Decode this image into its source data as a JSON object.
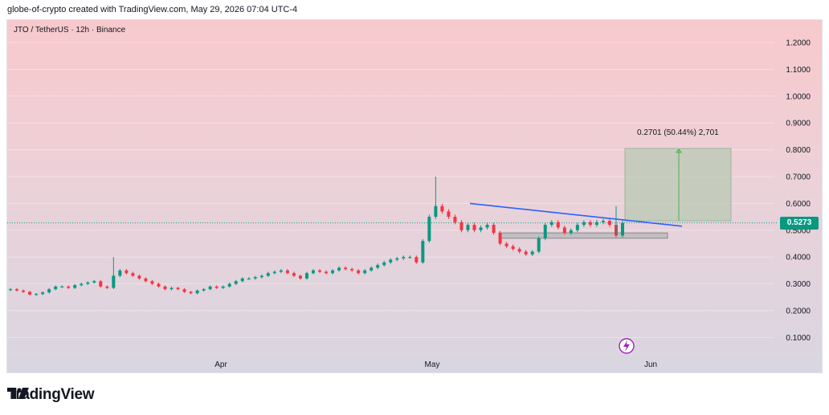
{
  "header": {
    "caption": "globe-of-crypto created with TradingView.com, May 29, 2026 07:04 UTC-4"
  },
  "symbol_line": "JTO / TetherUS · 12h · Binance",
  "last_price_label": "0.5273",
  "projection_label": "0.2701 (50.44%) 2,701",
  "brand": "TradingView",
  "colors": {
    "up": "#089981",
    "down": "#f23645",
    "trendline": "#2962ff",
    "target_box": "#b8c9b4"
  },
  "chart_data": {
    "type": "candlestick",
    "title": "JTO / TetherUS · 12h · Binance",
    "ylim": [
      0.05,
      1.25
    ],
    "y_ticks": [
      "1.2000",
      "1.1000",
      "1.0000",
      "0.9000",
      "0.8000",
      "0.7000",
      "0.6000",
      "0.5000",
      "0.4000",
      "0.3000",
      "0.2000",
      "0.1000"
    ],
    "x_ticks": [
      "Apr",
      "May",
      "Jun"
    ],
    "last_price": 0.5273,
    "resistance_box": [
      0.47,
      0.49
    ],
    "trendline": {
      "start": 0.6,
      "end": 0.515
    },
    "projection": {
      "from": 0.535,
      "to": 0.805,
      "delta": "0.2701",
      "pct": "50.44%",
      "ticks": "2,701"
    },
    "series": [
      {
        "values": [
          0.28,
          0.275,
          0.27,
          0.26,
          0.262,
          0.268,
          0.28,
          0.29,
          0.29,
          0.285,
          0.295,
          0.3,
          0.305,
          0.31,
          0.29,
          0.285,
          0.33,
          0.35,
          0.34,
          0.33,
          0.32,
          0.31,
          0.3,
          0.29,
          0.28,
          0.285,
          0.28,
          0.27,
          0.265,
          0.275,
          0.28,
          0.29,
          0.285,
          0.29,
          0.3,
          0.31,
          0.32,
          0.32,
          0.325,
          0.33,
          0.34,
          0.345,
          0.35,
          0.34,
          0.33,
          0.32,
          0.34,
          0.35,
          0.345,
          0.34,
          0.35,
          0.36,
          0.355,
          0.35,
          0.34,
          0.35,
          0.36,
          0.37,
          0.38,
          0.39,
          0.395,
          0.4,
          0.4,
          0.38,
          0.46,
          0.55,
          0.59,
          0.57,
          0.55,
          0.53,
          0.5,
          0.52,
          0.5,
          0.51,
          0.52,
          0.49,
          0.45,
          0.44,
          0.43,
          0.42,
          0.41,
          0.42,
          0.47,
          0.52,
          0.53,
          0.51,
          0.49,
          0.5,
          0.52,
          0.53,
          0.52,
          0.53,
          0.535,
          0.52,
          0.48,
          0.5273
        ]
      }
    ]
  }
}
